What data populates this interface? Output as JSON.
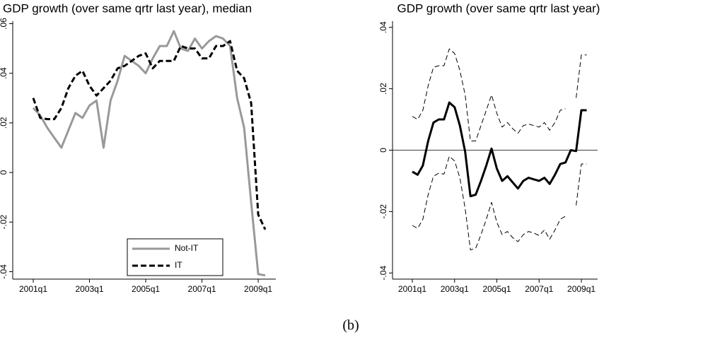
{
  "chart_data": [
    {
      "type": "line",
      "title": "GDP growth (over same qrtr last year), median",
      "categories": [
        "2001q1",
        null,
        null,
        null,
        null,
        null,
        null,
        null,
        "2003q1",
        null,
        null,
        null,
        null,
        null,
        null,
        null,
        "2005q1",
        null,
        null,
        null,
        null,
        null,
        null,
        null,
        "2007q1",
        null,
        null,
        null,
        null,
        null,
        null,
        null,
        "2009q1",
        null
      ],
      "series": [
        {
          "name": "Not-IT",
          "color": "#999999",
          "style": "solid",
          "weight": "thick",
          "values": [
            0.026,
            0.023,
            0.018,
            0.014,
            0.01,
            0.017,
            0.024,
            0.022,
            0.027,
            0.029,
            0.01,
            0.029,
            0.037,
            0.047,
            0.045,
            0.043,
            0.04,
            0.046,
            0.051,
            0.051,
            0.057,
            0.05,
            0.049,
            0.054,
            0.05,
            0.053,
            0.055,
            0.054,
            0.051,
            0.03,
            0.018,
            -0.012,
            -0.041,
            -0.0415
          ]
        },
        {
          "name": "IT",
          "color": "#000000",
          "style": "dashed",
          "weight": "thick",
          "values": [
            0.03,
            0.022,
            0.0215,
            0.0215,
            0.026,
            0.034,
            0.039,
            0.041,
            0.035,
            0.031,
            0.034,
            0.037,
            0.042,
            0.043,
            0.045,
            0.047,
            0.048,
            0.042,
            0.045,
            0.045,
            0.045,
            0.051,
            0.05,
            0.05,
            0.046,
            0.046,
            0.051,
            0.051,
            0.053,
            0.041,
            0.038,
            0.028,
            -0.017,
            -0.023
          ]
        }
      ],
      "ylim": [
        -0.043,
        0.061
      ],
      "yticks": [
        {
          "value": -0.04,
          "label": "-.04"
        },
        {
          "value": -0.02,
          "label": "-.02"
        },
        0,
        {
          "value": 0.02,
          "label": ".02"
        },
        {
          "value": 0.04,
          "label": ".04"
        },
        {
          "value": 0.06,
          "label": ".06"
        }
      ],
      "legend": "bottom",
      "zero_line": false
    },
    {
      "type": "line",
      "title": "GDP growth (over same qrtr last year)",
      "categories": [
        "2001q1",
        null,
        null,
        null,
        null,
        null,
        null,
        null,
        "2003q1",
        null,
        null,
        null,
        null,
        null,
        null,
        null,
        "2005q1",
        null,
        null,
        null,
        null,
        null,
        null,
        null,
        "2007q1",
        null,
        null,
        null,
        null,
        null,
        null,
        null,
        "2009q1",
        null
      ],
      "series": [
        {
          "color": "#000000",
          "style": "solid",
          "weight": "thick",
          "values": [
            -0.007,
            -0.008,
            -0.005,
            0.003,
            0.009,
            0.01,
            0.01,
            0.0155,
            0.014,
            0.008,
            -0.0005,
            -0.015,
            -0.0145,
            -0.01,
            -0.005,
            0.0005,
            -0.006,
            -0.01,
            -0.0085,
            -0.0105,
            -0.0125,
            -0.01,
            -0.009,
            -0.0095,
            -0.01,
            -0.009,
            -0.011,
            -0.008,
            -0.0045,
            -0.004,
            0,
            -0.0003,
            0.013,
            0.013
          ]
        },
        {
          "color": "#000000",
          "style": "dashed",
          "weight": "thin",
          "values": [
            0.011,
            0.01,
            0.013,
            0.021,
            0.027,
            0.0275,
            0.0275,
            0.033,
            0.0315,
            0.026,
            0.018,
            0.003,
            0.003,
            0.008,
            0.013,
            0.018,
            0.012,
            0.0075,
            0.009,
            0.007,
            0.0055,
            0.008,
            0.0085,
            0.008,
            0.0075,
            0.009,
            0.0065,
            0.009,
            0.013,
            0.0135,
            null,
            0.017,
            0.031,
            0.031
          ]
        },
        {
          "color": "#000000",
          "style": "dashed",
          "weight": "thin",
          "values": [
            -0.0245,
            -0.0255,
            -0.0225,
            -0.0145,
            -0.0085,
            -0.0075,
            -0.0078,
            -0.002,
            -0.0035,
            -0.009,
            -0.019,
            -0.0325,
            -0.032,
            -0.0275,
            -0.0225,
            -0.017,
            -0.0235,
            -0.0275,
            -0.0265,
            -0.0285,
            -0.0298,
            -0.0275,
            -0.0265,
            -0.027,
            -0.0278,
            -0.026,
            -0.029,
            -0.026,
            -0.0225,
            -0.0215,
            null,
            -0.018,
            -0.0045,
            -0.0045
          ]
        }
      ],
      "ylim": [
        -0.042,
        0.042
      ],
      "yticks": [
        {
          "value": -0.04,
          "label": "-.04"
        },
        {
          "value": -0.02,
          "label": "-.02"
        },
        0,
        {
          "value": 0.02,
          "label": ".02"
        },
        {
          "value": 0.04,
          "label": ".04"
        }
      ],
      "zero_line": true
    }
  ],
  "caption": "(b)"
}
